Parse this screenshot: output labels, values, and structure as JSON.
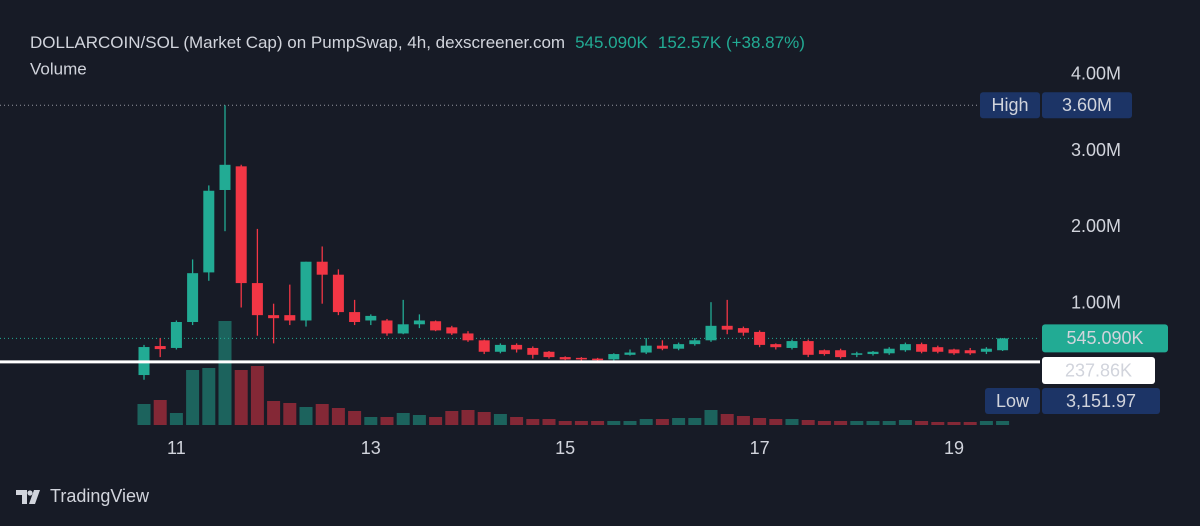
{
  "chart_data": {
    "type": "candlestick",
    "title": "DOLLARCOIN/SOL (Market Cap) on PumpSwap, 4h, dexscreener.com",
    "change": "152.57K (+38.87%)",
    "volume_title": "Volume",
    "watermark": "TradingView",
    "categories": [
      null,
      null,
      "11",
      null,
      null,
      null,
      null,
      null,
      null,
      null,
      null,
      null,
      null,
      null,
      "13",
      null,
      null,
      null,
      null,
      null,
      null,
      null,
      null,
      null,
      null,
      null,
      "15",
      null,
      null,
      null,
      null,
      null,
      null,
      null,
      null,
      null,
      null,
      null,
      "17",
      null,
      null,
      null,
      null,
      null,
      null,
      null,
      null,
      null,
      null,
      null,
      "19",
      null,
      null,
      null
    ],
    "open": [
      65000,
      445000,
      420000,
      760000,
      1410000,
      2490000,
      2800000,
      1270000,
      850000,
      850000,
      780000,
      1550000,
      1380000,
      890000,
      780000,
      780000,
      610000,
      730000,
      770000,
      690000,
      610000,
      520000,
      370000,
      460000,
      420000,
      370000,
      300000,
      290000,
      280000,
      270000,
      330000,
      360000,
      450000,
      410000,
      470000,
      520000,
      710000,
      680000,
      630000,
      470000,
      420000,
      510000,
      390000,
      390000,
      330000,
      340000,
      350000,
      390000,
      470000,
      430000,
      400000,
      390000,
      370000,
      390000
    ],
    "high": [
      460000,
      550000,
      780000,
      1580000,
      2550000,
      3600000,
      2820000,
      1980000,
      1000000,
      1250000,
      1550000,
      1750000,
      1450000,
      1050000,
      860000,
      800000,
      1050000,
      860000,
      780000,
      710000,
      640000,
      530000,
      480000,
      480000,
      440000,
      380000,
      310000,
      300000,
      290000,
      350000,
      400000,
      550000,
      520000,
      490000,
      550000,
      1020000,
      1050000,
      700000,
      650000,
      480000,
      530000,
      530000,
      400000,
      410000,
      370000,
      380000,
      430000,
      490000,
      490000,
      450000,
      410000,
      420000,
      430000,
      550000
    ],
    "low": [
      3151.97,
      300000,
      400000,
      720000,
      1300000,
      1950000,
      950000,
      580000,
      480000,
      720000,
      700000,
      1000000,
      850000,
      720000,
      720000,
      580000,
      600000,
      680000,
      640000,
      590000,
      500000,
      340000,
      350000,
      360000,
      280000,
      280000,
      260000,
      250000,
      240000,
      250000,
      320000,
      340000,
      390000,
      390000,
      450000,
      500000,
      600000,
      580000,
      430000,
      400000,
      400000,
      300000,
      320000,
      280000,
      300000,
      320000,
      330000,
      370000,
      350000,
      350000,
      330000,
      330000,
      340000,
      380000
    ],
    "close": [
      432000,
      405000,
      760000,
      1400000,
      2480000,
      2820000,
      1270000,
      850000,
      810000,
      780000,
      1550000,
      1380000,
      890000,
      760000,
      840000,
      610000,
      730000,
      780000,
      650000,
      610000,
      520000,
      370000,
      460000,
      400000,
      330000,
      300000,
      270000,
      270000,
      260000,
      340000,
      360000,
      450000,
      410000,
      470000,
      520000,
      710000,
      660000,
      620000,
      460000,
      430000,
      510000,
      330000,
      340000,
      300000,
      350000,
      370000,
      410000,
      470000,
      370000,
      370000,
      350000,
      350000,
      410000,
      545090
    ],
    "volume": [
      21,
      25,
      12,
      55,
      57,
      104,
      55,
      59,
      24,
      22,
      18,
      21,
      17,
      14,
      8,
      8,
      12,
      10,
      8,
      14,
      15,
      13,
      11,
      8,
      6,
      6,
      4,
      4,
      4,
      4,
      4,
      6,
      6,
      7,
      7,
      15,
      11,
      9,
      7,
      6,
      6,
      5,
      4,
      4,
      4,
      4,
      4,
      5,
      4,
      3,
      3,
      3,
      4,
      4
    ],
    "up_color": "#22ab94",
    "down_color": "#f23645",
    "ylim": [
      0,
      4200000
    ],
    "yticks": [
      {
        "value": 1000000,
        "label": "1.00M"
      },
      {
        "value": 2000000,
        "label": "2.00M"
      },
      {
        "value": 3000000,
        "label": "3.00M"
      },
      {
        "value": 4000000,
        "label": "4.00M"
      }
    ],
    "grid": false,
    "high_marker": {
      "name": "High",
      "value": 3600000,
      "label": "3.60M"
    },
    "low_marker": {
      "name": "Low",
      "value": 3151.97,
      "label": "3,151.97"
    },
    "last_price": {
      "value": 545090,
      "label": "545.090K"
    },
    "reference_line": {
      "value": 237860,
      "label": "237.86K"
    }
  }
}
